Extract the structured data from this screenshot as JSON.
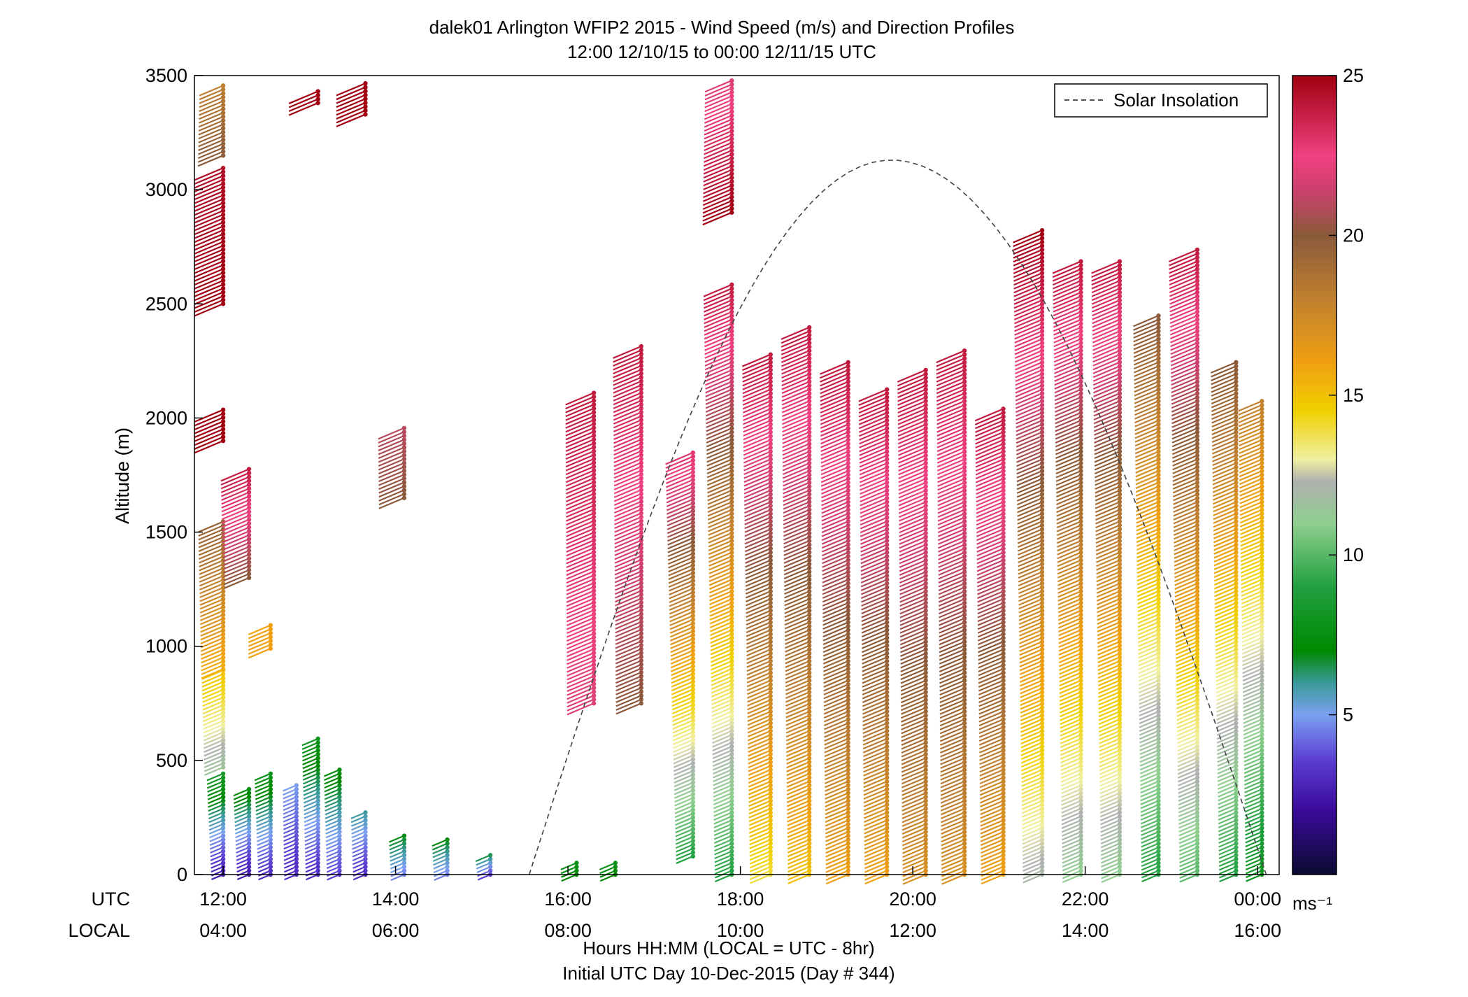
{
  "chart_data": {
    "type": "wind-barb-profile",
    "title": "dalek01 Arlington WFIP2 2015 - Wind Speed (m/s) and Direction Profiles",
    "subtitle": "12:00 12/10/15 to 00:00 12/11/15  UTC",
    "ylabel": "Altitude (m)",
    "xlabel": "Hours HH:MM  (LOCAL = UTC - 8hr)",
    "xlabel2": "Initial UTC Day 10-Dec-2015 (Day # 344)",
    "utc_label": "UTC",
    "local_label": "LOCAL",
    "ylim": [
      0,
      3500
    ],
    "yticks": [
      "0",
      "500",
      "1000",
      "1500",
      "2000",
      "2500",
      "3000",
      "3500"
    ],
    "xlim_hours": [
      11.6667,
      24.25
    ],
    "xticks_utc": [
      "12:00",
      "14:00",
      "16:00",
      "18:00",
      "20:00",
      "22:00",
      "00:00"
    ],
    "xticks_local": [
      "04:00",
      "06:00",
      "08:00",
      "10:00",
      "12:00",
      "14:00",
      "16:00"
    ],
    "legend": {
      "label": "Solar Insolation",
      "placement": "top-right",
      "style": "dashed"
    },
    "solar_insolation": {
      "start_hour": 15.55,
      "peak_hour": 19.75,
      "end_hour": 24.1,
      "peak_altitude_m": 3130
    },
    "colorbar": {
      "min": 0,
      "max": 25,
      "ticks": [
        "5",
        "10",
        "15",
        "20",
        "25"
      ],
      "unit": "ms⁻¹",
      "stops": [
        [
          0,
          "#0a0a30"
        ],
        [
          2,
          "#3a0a9a"
        ],
        [
          3.5,
          "#5a3ad0"
        ],
        [
          5,
          "#7aa0f0"
        ],
        [
          6,
          "#3a9a9a"
        ],
        [
          7,
          "#008800"
        ],
        [
          9,
          "#20a040"
        ],
        [
          11,
          "#8fcf8f"
        ],
        [
          12.3,
          "#b0b0b0"
        ],
        [
          13,
          "#f0f0a0"
        ],
        [
          14.5,
          "#f0d000"
        ],
        [
          16,
          "#f0a010"
        ],
        [
          18,
          "#c08030"
        ],
        [
          20,
          "#8a5a3a"
        ],
        [
          21.5,
          "#d04070"
        ],
        [
          22.5,
          "#f04080"
        ],
        [
          25,
          "#a00010"
        ]
      ]
    },
    "profiles": [
      {
        "t": 12.0,
        "segments": [
          {
            "z0": 0,
            "z1": 450,
            "s0": 2.5,
            "s1": 8.5
          },
          {
            "z0": 470,
            "z1": 900,
            "s0": 11.5,
            "s1": 15.0
          },
          {
            "z0": 900,
            "z1": 1550,
            "s0": 15.5,
            "s1": 19.5
          },
          {
            "z0": 1900,
            "z1": 2050,
            "s0": 25,
            "s1": 25
          },
          {
            "z0": 2500,
            "z1": 3100,
            "s0": 25,
            "s1": 24.5
          },
          {
            "z0": 3150,
            "z1": 3470,
            "s0": 20,
            "s1": 18
          }
        ]
      },
      {
        "t": 12.3,
        "segments": [
          {
            "z0": 0,
            "z1": 380,
            "s0": 2.5,
            "s1": 7.5
          },
          {
            "z0": 1300,
            "z1": 1790,
            "s0": 20,
            "s1": 24
          }
        ]
      },
      {
        "t": 12.55,
        "segments": [
          {
            "z0": 0,
            "z1": 450,
            "s0": 3.0,
            "s1": 8.0
          },
          {
            "z0": 990,
            "z1": 1100,
            "s0": 16,
            "s1": 16
          }
        ]
      },
      {
        "t": 12.85,
        "segments": [
          {
            "z0": 0,
            "z1": 400,
            "s0": 3,
            "s1": 5
          }
        ]
      },
      {
        "t": 13.1,
        "segments": [
          {
            "z0": 0,
            "z1": 600,
            "s0": 3,
            "s1": 8
          },
          {
            "z0": 3380,
            "z1": 3440,
            "s0": 25,
            "s1": 25
          }
        ]
      },
      {
        "t": 13.35,
        "segments": [
          {
            "z0": 0,
            "z1": 470,
            "s0": 3.5,
            "s1": 7.5
          }
        ]
      },
      {
        "t": 13.65,
        "segments": [
          {
            "z0": 0,
            "z1": 280,
            "s0": 3,
            "s1": 6
          },
          {
            "z0": 3330,
            "z1": 3470,
            "s0": 25,
            "s1": 25
          }
        ]
      },
      {
        "t": 14.1,
        "segments": [
          {
            "z0": 0,
            "z1": 180,
            "s0": 4.5,
            "s1": 7
          },
          {
            "z0": 1650,
            "z1": 1960,
            "s0": 20,
            "s1": 21
          }
        ]
      },
      {
        "t": 14.6,
        "segments": [
          {
            "z0": 0,
            "z1": 160,
            "s0": 4.5,
            "s1": 7
          }
        ]
      },
      {
        "t": 15.1,
        "segments": [
          {
            "z0": 0,
            "z1": 100,
            "s0": 3.5,
            "s1": 7
          }
        ]
      },
      {
        "t": 16.1,
        "segments": [
          {
            "z0": 0,
            "z1": 60,
            "s0": 7,
            "s1": 8
          }
        ]
      },
      {
        "t": 16.55,
        "segments": [
          {
            "z0": 0,
            "z1": 60,
            "s0": 7,
            "s1": 8
          }
        ]
      },
      {
        "t": 16.3,
        "segments": [
          {
            "z0": 750,
            "z1": 2120,
            "s0": 22,
            "s1": 24
          }
        ]
      },
      {
        "t": 16.85,
        "segments": [
          {
            "z0": 750,
            "z1": 2320,
            "s0": 20,
            "s1": 24
          }
        ]
      },
      {
        "t": 17.45,
        "segments": [
          {
            "z0": 80,
            "z1": 1850,
            "s0": 9,
            "s1": 23
          }
        ]
      },
      {
        "t": 17.9,
        "segments": [
          {
            "z0": 0,
            "z1": 2600,
            "s0": 9,
            "s1": 24
          },
          {
            "z0": 2900,
            "z1": 3480,
            "s0": 25,
            "s1": 22
          }
        ]
      },
      {
        "t": 18.35,
        "segments": [
          {
            "z0": 0,
            "z1": 2280,
            "s0": 14,
            "s1": 24
          }
        ]
      },
      {
        "t": 18.8,
        "segments": [
          {
            "z0": 0,
            "z1": 2410,
            "s0": 15,
            "s1": 24
          }
        ]
      },
      {
        "t": 19.25,
        "segments": [
          {
            "z0": 0,
            "z1": 2250,
            "s0": 16,
            "s1": 24
          }
        ]
      },
      {
        "t": 19.7,
        "segments": [
          {
            "z0": 0,
            "z1": 2140,
            "s0": 16,
            "s1": 24
          }
        ]
      },
      {
        "t": 20.15,
        "segments": [
          {
            "z0": 0,
            "z1": 2220,
            "s0": 17,
            "s1": 24
          }
        ]
      },
      {
        "t": 20.6,
        "segments": [
          {
            "z0": 0,
            "z1": 2310,
            "s0": 17,
            "s1": 24
          }
        ]
      },
      {
        "t": 21.05,
        "segments": [
          {
            "z0": 0,
            "z1": 2050,
            "s0": 16,
            "s1": 24
          }
        ]
      },
      {
        "t": 21.5,
        "segments": [
          {
            "z0": 0,
            "z1": 2830,
            "s0": 12,
            "s1": 25
          }
        ]
      },
      {
        "t": 21.95,
        "segments": [
          {
            "z0": 0,
            "z1": 2690,
            "s0": 11,
            "s1": 24
          }
        ]
      },
      {
        "t": 22.4,
        "segments": [
          {
            "z0": 0,
            "z1": 2700,
            "s0": 11,
            "s1": 24
          }
        ]
      },
      {
        "t": 22.85,
        "segments": [
          {
            "z0": 0,
            "z1": 2450,
            "s0": 9,
            "s1": 20
          }
        ]
      },
      {
        "t": 23.3,
        "segments": [
          {
            "z0": 0,
            "z1": 2740,
            "s0": 10,
            "s1": 24
          }
        ]
      },
      {
        "t": 23.75,
        "segments": [
          {
            "z0": 0,
            "z1": 2250,
            "s0": 9,
            "s1": 20
          }
        ]
      },
      {
        "t": 24.05,
        "segments": [
          {
            "z0": 0,
            "z1": 2090,
            "s0": 8,
            "s1": 18
          }
        ]
      }
    ]
  }
}
